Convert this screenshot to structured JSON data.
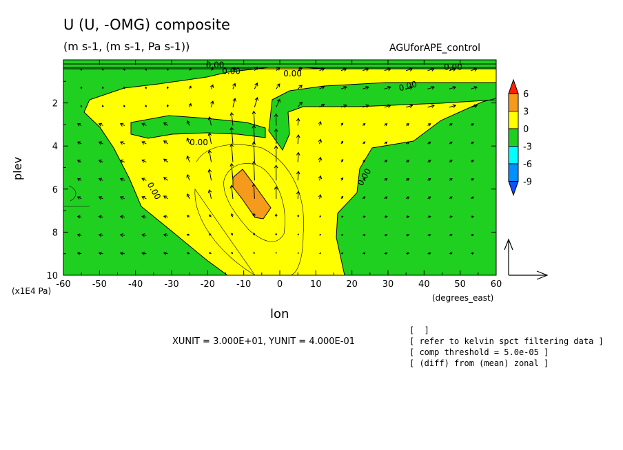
{
  "header": {
    "title": "U (U, -OMG) composite",
    "subtitle": "(m s-1, (m s-1, Pa s-1))",
    "experiment": "AGUforAPE_control"
  },
  "notes": [
    "[  ]",
    "[ refer to kelvin spct filtering data ]",
    "[ comp threshold = 5.0e-05 ]",
    "[ (diff) from (mean) zonal ]"
  ],
  "chart_data": {
    "type": "contour",
    "title": "U (U, -OMG) composite",
    "subtitle": "(m s-1, (m s-1, Pa s-1))",
    "xlabel": "lon",
    "ylabel": "plev",
    "x_unit": "(degrees_east)",
    "y_scale_note": "(x1E4 Pa)",
    "xlim": [
      -60,
      60
    ],
    "ylim": [
      10,
      0
    ],
    "x_ticks": [
      -60,
      -50,
      -40,
      -30,
      -20,
      -10,
      0,
      10,
      20,
      30,
      40,
      50,
      60
    ],
    "y_ticks": [
      2,
      4,
      6,
      8,
      10
    ],
    "contour_label": "0.00",
    "contour_label_count": 8,
    "colorbar": {
      "ticks": [
        6,
        3,
        0,
        -3,
        -6,
        -9
      ],
      "colors": [
        "#ff2000",
        "#f59a1b",
        "#ffff00",
        "#20d020",
        "#00ffff",
        "#0090ff",
        "#1050ff"
      ]
    },
    "vector_reference": "XUNIT = 3.000E+01, YUNIT = 4.000E-01",
    "approx_max": {
      "lon": -8,
      "plev": 6,
      "value": 4
    },
    "approx_regions": [
      {
        "sign": "positive",
        "range": "0 to 3",
        "lon": [
          -57,
          22
        ],
        "plev": [
          1.5,
          10
        ]
      },
      {
        "sign": "positive",
        "range": "3 to 6",
        "lon": [
          -13,
          -3
        ],
        "plev": [
          5.2,
          7.5
        ]
      },
      {
        "sign": "negative",
        "range": "-3 to 0",
        "lon": [
          -60,
          60
        ],
        "plev": [
          0,
          10
        ],
        "note": "outer regions"
      }
    ]
  }
}
